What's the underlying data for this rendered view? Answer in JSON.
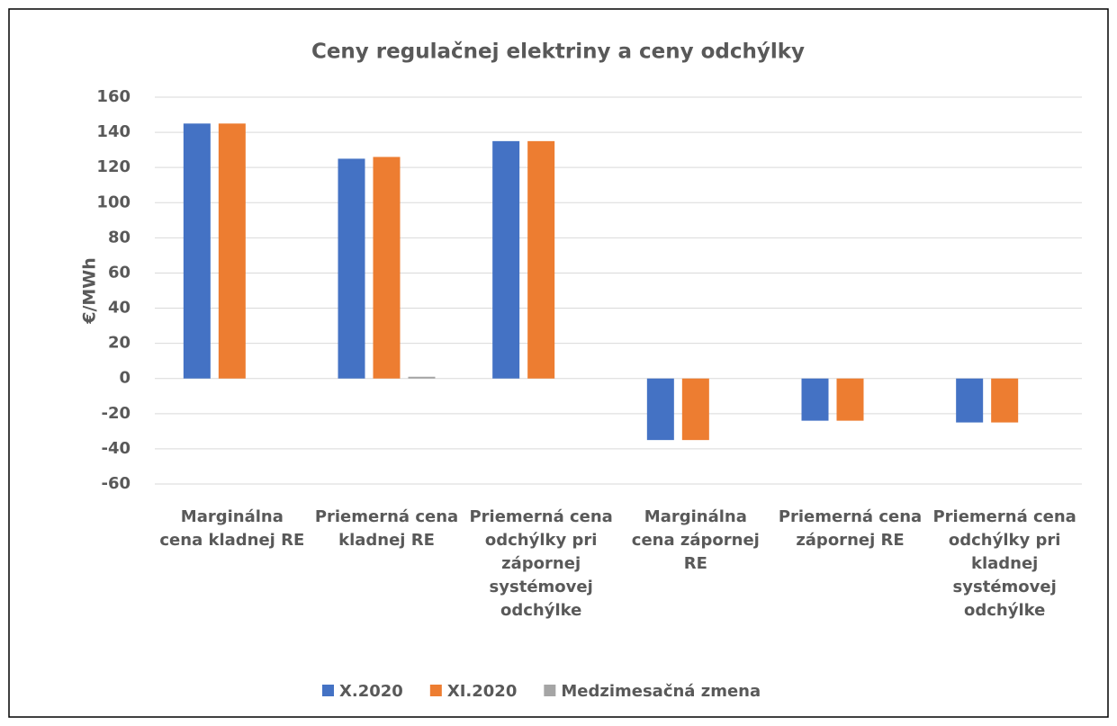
{
  "chart_data": {
    "type": "bar",
    "title": "Ceny regulačnej elektriny a ceny odchýlky",
    "y_label": "€/MWh",
    "categories": [
      "Marginálna cena kladnej RE",
      "Priemerná cena kladnej RE",
      "Priemerná cena odchýlky pri zápornej systémovej odchýlke",
      "Marginálna cena zápornej RE",
      "Priemerná cena zápornej RE",
      "Priemerná cena odchýlky pri kladnej systémovej odchýlke"
    ],
    "series": [
      {
        "name": "X.2020",
        "color": "#4472c4",
        "values": [
          145,
          125,
          135,
          -35,
          -24,
          -25
        ]
      },
      {
        "name": "XI.2020",
        "color": "#ed7d31",
        "values": [
          145,
          126,
          135,
          -35,
          -24,
          -25
        ]
      },
      {
        "name": "Medzimesačná zmena",
        "color": "#a5a5a5",
        "values": [
          0,
          1,
          0,
          0,
          0,
          0
        ]
      }
    ],
    "ylim": [
      -60,
      160
    ],
    "yticks": [
      -60,
      -40,
      -20,
      0,
      20,
      40,
      60,
      80,
      100,
      120,
      140,
      160
    ],
    "grid": true,
    "legend": "bottom"
  }
}
